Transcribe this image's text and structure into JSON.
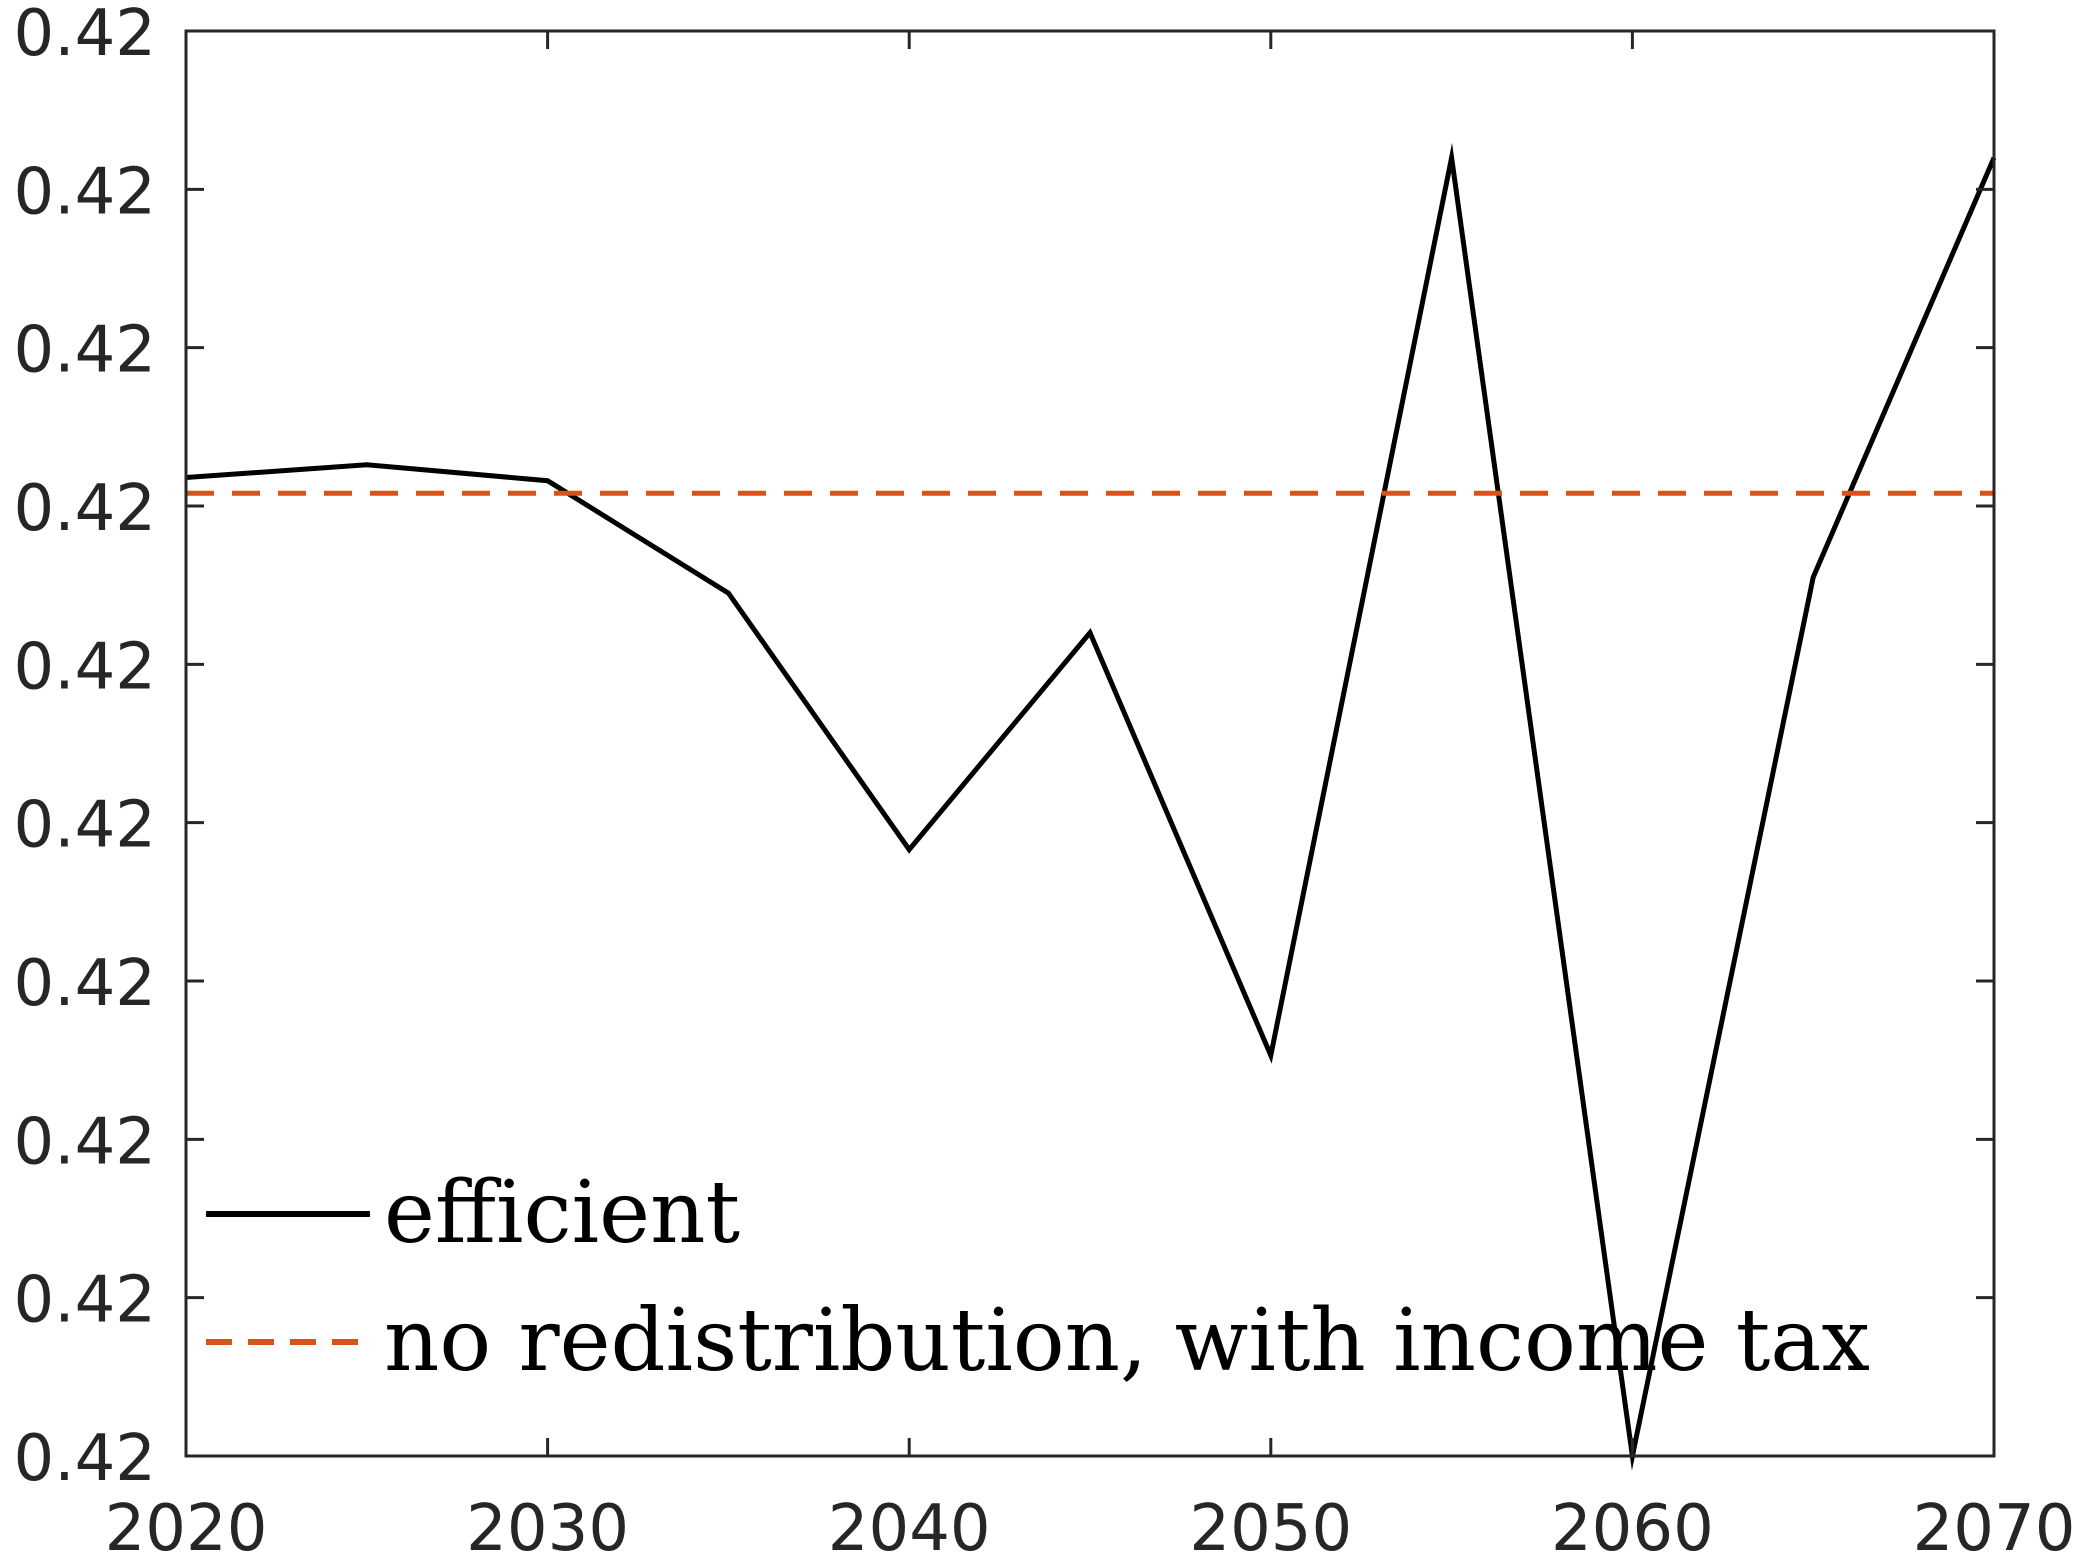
{
  "chart_data": {
    "type": "line",
    "title": "",
    "xlabel": "",
    "ylabel": "",
    "xlim": [
      2020,
      2070
    ],
    "ylim": [
      0,
      9
    ],
    "x_ticks": [
      2020,
      2030,
      2040,
      2050,
      2060,
      2070
    ],
    "x_tick_labels": [
      "2020",
      "2030",
      "2040",
      "2050",
      "2060",
      "2070"
    ],
    "y_ticks": [
      0,
      1,
      2,
      3,
      4,
      5,
      6,
      7,
      8,
      9
    ],
    "y_tick_labels": [
      "0.42",
      "0.42",
      "0.42",
      "0.42",
      "0.42",
      "0.42",
      "0.42",
      "0.42",
      "0.42",
      "0.42"
    ],
    "y_note": "tick labels all print 0.42; y values are in tick-index units (0 = bottom tick, 9 = top tick)",
    "grid": false,
    "legend_position": "bottom-left",
    "series": [
      {
        "name": "efficient",
        "style": "solid",
        "color": "#000000",
        "x": [
          2020,
          2025,
          2030,
          2035,
          2040,
          2045,
          2050,
          2055,
          2060,
          2065,
          2070
        ],
        "y": [
          6.18,
          6.26,
          6.16,
          5.45,
          3.83,
          5.2,
          2.53,
          8.2,
          0.0,
          5.55,
          8.2
        ]
      },
      {
        "name": "no redistribution, with income tax",
        "style": "dashed",
        "color": "#D95319",
        "x": [
          2020,
          2070
        ],
        "y": [
          6.08,
          6.08
        ]
      }
    ]
  }
}
